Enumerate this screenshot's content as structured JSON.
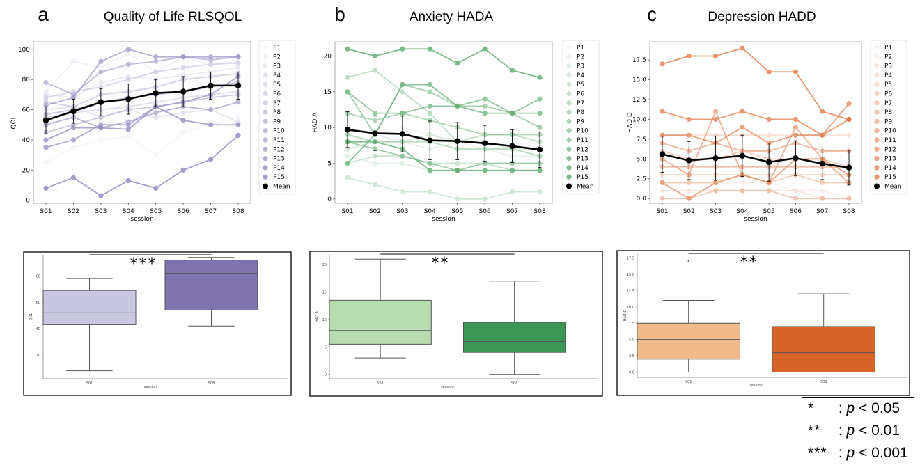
{
  "colors": {
    "qol_base": "#7b6db0",
    "qol_box_s01": "#c9c6e2",
    "qol_box_s08": "#8074ae",
    "anx_base": "#3b9a50",
    "anx_box_s01": "#b6dcb0",
    "anx_box_s08": "#3c9656",
    "dep_base": "#d9632a",
    "dep_box_s01": "#f2bb8a",
    "dep_box_s08": "#d66426",
    "mean": "#000000"
  },
  "significance_legend": [
    {
      "stars": "*",
      "colon": ":",
      "p": "p",
      "rel": "< 0.05"
    },
    {
      "stars": "**",
      "colon": ":",
      "p": "p",
      "rel": "< 0.01"
    },
    {
      "stars": "***",
      "colon": ":",
      "p": "p",
      "rel": "< 0.001"
    }
  ],
  "chart_data": [
    {
      "type": "line",
      "panel_letter": "a",
      "title": "Quality of Life RLSQOL",
      "xlabel": "session",
      "ylabel": "QOL",
      "x": [
        "S01",
        "S02",
        "S03",
        "S04",
        "S05",
        "S06",
        "S07",
        "S08"
      ],
      "ylim": [
        -2,
        105
      ],
      "yticks": [
        0,
        20,
        40,
        60,
        80,
        100
      ],
      "yticklabels": [
        "0",
        "20",
        "40",
        "60",
        "80",
        "100"
      ],
      "color_key": "qol_base",
      "series": [
        {
          "name": "P1",
          "values": [
            25,
            35,
            40,
            42,
            30,
            45,
            50,
            55
          ]
        },
        {
          "name": "P2",
          "values": [
            72,
            92,
            88,
            97,
            85,
            95,
            90,
            92
          ]
        },
        {
          "name": "P3",
          "values": [
            70,
            68,
            78,
            82,
            80,
            83,
            85,
            88
          ]
        },
        {
          "name": "P4",
          "values": [
            60,
            62,
            55,
            60,
            55,
            58,
            60,
            52
          ]
        },
        {
          "name": "P5",
          "values": [
            55,
            58,
            60,
            62,
            65,
            68,
            70,
            72
          ]
        },
        {
          "name": "P6",
          "values": [
            68,
            72,
            75,
            80,
            85,
            88,
            90,
            91
          ]
        },
        {
          "name": "P7",
          "values": [
            65,
            62,
            70,
            72,
            75,
            80,
            82,
            84
          ]
        },
        {
          "name": "P8",
          "values": [
            45,
            50,
            55,
            60,
            62,
            65,
            68,
            70
          ]
        },
        {
          "name": "P9",
          "values": [
            57,
            60,
            65,
            68,
            70,
            72,
            75,
            78
          ]
        },
        {
          "name": "P10",
          "values": [
            78,
            70,
            85,
            90,
            92,
            95,
            93,
            95
          ]
        },
        {
          "name": "P11",
          "values": [
            50,
            55,
            48,
            52,
            58,
            62,
            60,
            65
          ]
        },
        {
          "name": "P12",
          "values": [
            63,
            68,
            92,
            100,
            95,
            95,
            95,
            95
          ]
        },
        {
          "name": "P13",
          "values": [
            35,
            40,
            50,
            50,
            62,
            65,
            70,
            82
          ]
        },
        {
          "name": "P14",
          "values": [
            40,
            48,
            48,
            47,
            62,
            53,
            50,
            50
          ]
        },
        {
          "name": "P15",
          "values": [
            8,
            15,
            3,
            13,
            8,
            20,
            27,
            43
          ]
        }
      ],
      "mean": {
        "name": "Mean",
        "values": [
          53,
          59,
          65,
          67,
          71,
          72,
          76,
          76
        ],
        "err": [
          9,
          8,
          9,
          10,
          9,
          10,
          9,
          9
        ]
      },
      "boxplot": {
        "categories": [
          "S01",
          "S08"
        ],
        "xlabel": "session",
        "ylabel": "QOL",
        "ylim": [
          2,
          96
        ],
        "yticks": [
          20,
          40,
          60,
          80
        ],
        "yticklabels": [
          "20",
          "40",
          "60",
          "80"
        ],
        "boxes": [
          {
            "whislo": 8,
            "q1": 43,
            "med": 52,
            "q3": 69,
            "whishi": 78,
            "fill_key": "qol_box_s01"
          },
          {
            "whislo": 42,
            "q1": 54,
            "med": 82,
            "q3": 92,
            "whishi": 94,
            "fill_key": "qol_box_s08"
          }
        ],
        "significance": "***"
      }
    },
    {
      "type": "line",
      "panel_letter": "b",
      "title": "Anxiety HADA",
      "xlabel": "session",
      "ylabel": "HAD A",
      "x": [
        "S01",
        "S02",
        "S03",
        "S04",
        "S05",
        "S06",
        "S07",
        "S08"
      ],
      "ylim": [
        -0.6,
        22
      ],
      "yticks": [
        0,
        5,
        10,
        15,
        20
      ],
      "yticklabels": [
        "0",
        "5",
        "10",
        "15",
        "20"
      ],
      "color_key": "anx_base",
      "series": [
        {
          "name": "P1",
          "values": [
            8,
            9,
            10,
            9,
            9,
            8,
            8,
            7
          ]
        },
        {
          "name": "P2",
          "values": [
            10,
            9,
            8,
            7,
            8,
            7,
            6,
            6
          ]
        },
        {
          "name": "P3",
          "values": [
            6,
            5,
            5,
            4,
            4,
            4,
            4,
            4
          ]
        },
        {
          "name": "P4",
          "values": [
            7,
            8,
            8,
            9,
            8,
            8,
            7,
            7
          ]
        },
        {
          "name": "P5",
          "values": [
            3,
            2,
            1,
            1,
            0,
            0,
            1,
            1
          ]
        },
        {
          "name": "P6",
          "values": [
            5,
            6,
            6,
            5,
            5,
            5,
            4,
            4
          ]
        },
        {
          "name": "P7",
          "values": [
            17,
            18,
            15,
            12,
            8,
            9,
            9,
            8
          ]
        },
        {
          "name": "P8",
          "values": [
            9,
            8,
            8,
            8,
            7,
            7,
            7,
            6
          ]
        },
        {
          "name": "P9",
          "values": [
            12,
            11,
            12,
            11,
            10,
            9,
            9,
            9
          ]
        },
        {
          "name": "P10",
          "values": [
            15,
            9,
            16,
            15,
            13,
            13,
            12,
            10
          ]
        },
        {
          "name": "P11",
          "values": [
            8,
            7,
            6,
            5,
            4,
            5,
            5,
            5
          ]
        },
        {
          "name": "P12",
          "values": [
            15,
            12,
            12,
            13,
            13,
            14,
            12,
            14
          ]
        },
        {
          "name": "P13",
          "values": [
            5,
            9,
            16,
            16,
            13,
            12,
            12,
            12
          ]
        },
        {
          "name": "P14",
          "values": [
            8,
            8,
            7,
            4,
            4,
            4,
            4,
            4
          ]
        },
        {
          "name": "P15",
          "values": [
            21,
            20,
            21,
            21,
            19,
            21,
            18,
            17
          ]
        }
      ],
      "mean": {
        "name": "Mean",
        "values": [
          9.7,
          9.2,
          9.1,
          8.2,
          8.1,
          7.8,
          7.4,
          6.9
        ],
        "err": [
          2.5,
          2.4,
          2.5,
          2.7,
          2.6,
          2.5,
          2.3,
          2.5
        ]
      },
      "boxplot": {
        "categories": [
          "S01",
          "S08"
        ],
        "xlabel": "session",
        "ylabel": "HAD A",
        "ylim": [
          -0.8,
          21.8
        ],
        "yticks": [
          0,
          5,
          10,
          15,
          20
        ],
        "yticklabels": [
          "0",
          "5",
          "10",
          "15",
          "20"
        ],
        "boxes": [
          {
            "whislo": 3,
            "q1": 5.5,
            "med": 8,
            "q3": 13.5,
            "whishi": 21,
            "fill_key": "anx_box_s01"
          },
          {
            "whislo": 0,
            "q1": 4,
            "med": 6,
            "q3": 9.5,
            "whishi": 17,
            "fill_key": "anx_box_s08"
          }
        ],
        "significance": "**"
      }
    },
    {
      "type": "line",
      "panel_letter": "c",
      "title": "Depression HADD",
      "xlabel": "session",
      "ylabel": "HAD D",
      "x": [
        "S01",
        "S02",
        "S03",
        "S04",
        "S05",
        "S06",
        "S07",
        "S08"
      ],
      "ylim": [
        -0.6,
        19.8
      ],
      "yticks": [
        0,
        2.5,
        5,
        7.5,
        10,
        12.5,
        15,
        17.5
      ],
      "yticklabels": [
        "0.0",
        "2.5",
        "5.0",
        "7.5",
        "10.0",
        "12.5",
        "15.0",
        "17.5"
      ],
      "color_key": "dep_base",
      "series": [
        {
          "name": "P1",
          "values": [
            5,
            5,
            5,
            4,
            4,
            4,
            4,
            3
          ]
        },
        {
          "name": "P2",
          "values": [
            2,
            2,
            2,
            2,
            2,
            1,
            1,
            0
          ]
        },
        {
          "name": "P3",
          "values": [
            1,
            1,
            1,
            1,
            1,
            1,
            0,
            0
          ]
        },
        {
          "name": "P4",
          "values": [
            8,
            8,
            8,
            8,
            8,
            8,
            8,
            8
          ]
        },
        {
          "name": "P5",
          "values": [
            3,
            3,
            3,
            3,
            3,
            3,
            3,
            3
          ]
        },
        {
          "name": "P6",
          "values": [
            6,
            5,
            5,
            6,
            5,
            5,
            5,
            4
          ]
        },
        {
          "name": "P7",
          "values": [
            2,
            2,
            2,
            3,
            2,
            3,
            2,
            2
          ]
        },
        {
          "name": "P8",
          "values": [
            0,
            0,
            1,
            1,
            1,
            0,
            0,
            0
          ]
        },
        {
          "name": "P9",
          "values": [
            4,
            4,
            4,
            4,
            4,
            4,
            4,
            4
          ]
        },
        {
          "name": "P10",
          "values": [
            7,
            6,
            7,
            6,
            6,
            7,
            6,
            6
          ]
        },
        {
          "name": "P11",
          "values": [
            5,
            3,
            11,
            3,
            2,
            9,
            5,
            2
          ]
        },
        {
          "name": "P12",
          "values": [
            2,
            0,
            2,
            3,
            2,
            5,
            5,
            3
          ]
        },
        {
          "name": "P13",
          "values": [
            8,
            8,
            7,
            9,
            7,
            8,
            8,
            12
          ]
        },
        {
          "name": "P14",
          "values": [
            11,
            10,
            10,
            11,
            10,
            10,
            8,
            10
          ]
        },
        {
          "name": "P15",
          "values": [
            17,
            18,
            18,
            19,
            16,
            16,
            11,
            10
          ]
        }
      ],
      "mean": {
        "name": "Mean",
        "values": [
          5.6,
          4.8,
          5.1,
          5.4,
          4.6,
          5.1,
          4.4,
          3.9
        ],
        "err": [
          2.3,
          2.4,
          2.8,
          2.6,
          2.4,
          2.2,
          2.0,
          2.2
        ]
      },
      "boxplot": {
        "categories": [
          "S01",
          "S08"
        ],
        "xlabel": "session",
        "ylabel": "HAD D",
        "ylim": [
          -0.8,
          18.2
        ],
        "yticks": [
          0,
          2.5,
          5,
          7.5,
          10,
          12.5,
          15,
          17.5
        ],
        "yticklabels": [
          "0.0",
          "2.5",
          "5.0",
          "7.5",
          "10.0",
          "12.5",
          "15.0",
          "17.5"
        ],
        "boxes": [
          {
            "whislo": 0,
            "q1": 2,
            "med": 5,
            "q3": 7.5,
            "whishi": 11,
            "fill_key": "dep_box_s01"
          },
          {
            "whislo": 0,
            "q1": 0,
            "med": 3,
            "q3": 7,
            "whishi": 12,
            "fill_key": "dep_box_s08"
          }
        ],
        "outlier_s01": 17,
        "significance": "**"
      }
    }
  ]
}
